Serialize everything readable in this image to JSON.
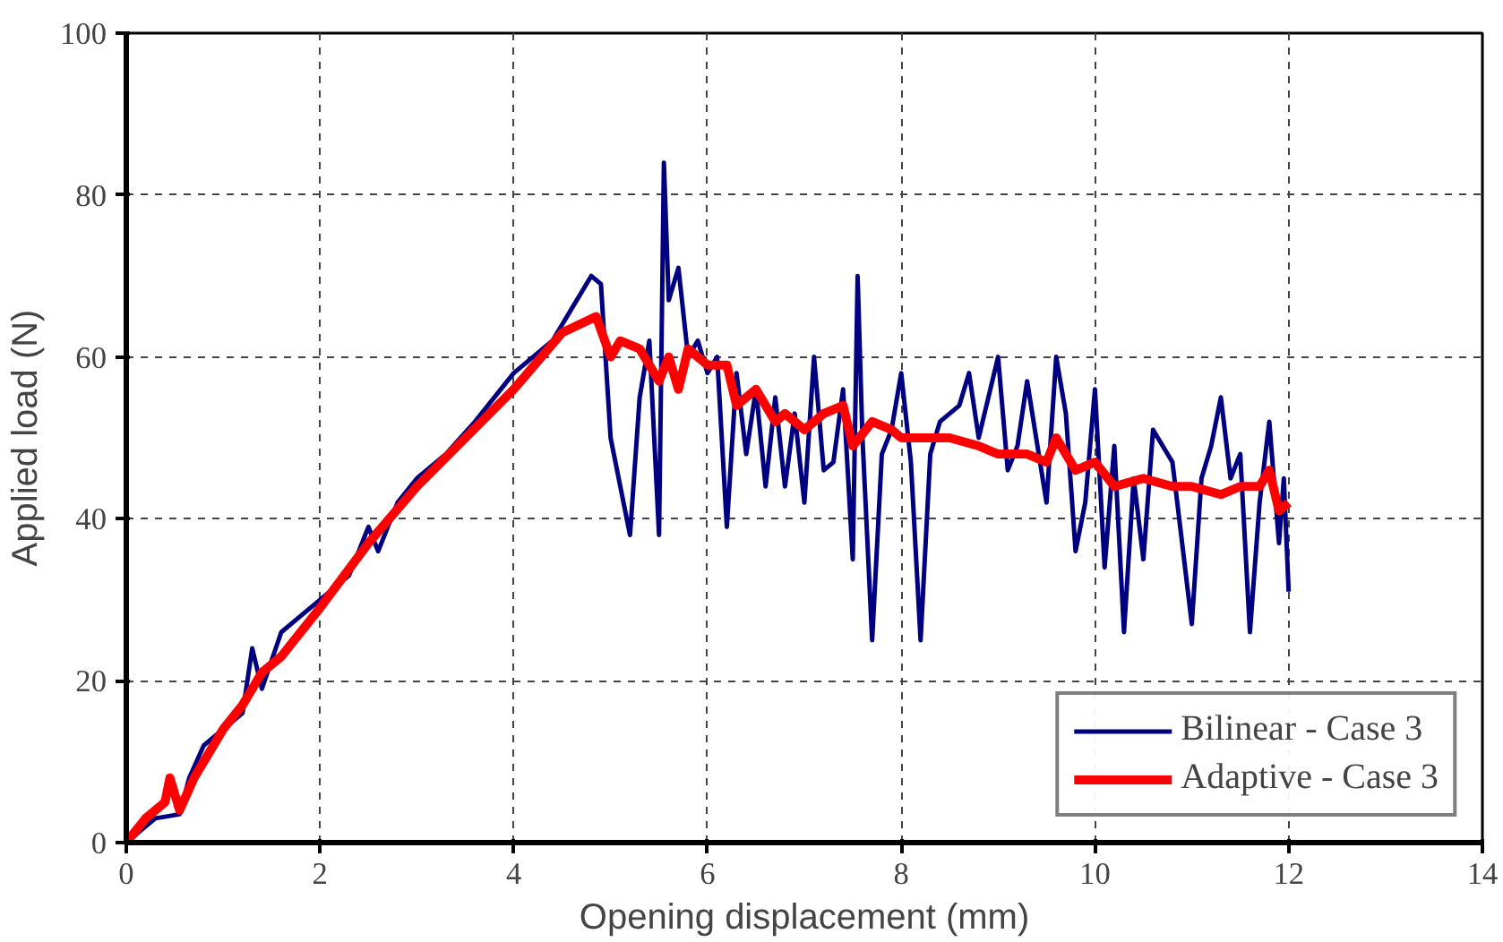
{
  "chart_data": {
    "type": "line",
    "xlabel": "Opening displacement (mm)",
    "ylabel": "Applied load (N)",
    "xlim": [
      0,
      14
    ],
    "ylim": [
      0,
      100
    ],
    "xticks": [
      0,
      2,
      4,
      6,
      8,
      10,
      12,
      14
    ],
    "yticks": [
      0,
      20,
      40,
      60,
      80,
      100
    ],
    "grid": true,
    "legend": "bottom right",
    "marker": "none",
    "line_style": "solid",
    "series": [
      {
        "name": "Bilinear - Case 3",
        "color": "#000080",
        "x": [
          0,
          0.3,
          0.55,
          0.65,
          0.8,
          1.0,
          1.2,
          1.3,
          1.4,
          1.6,
          1.8,
          2.0,
          2.3,
          2.5,
          2.6,
          2.8,
          3.0,
          3.3,
          3.6,
          4.0,
          4.4,
          4.6,
          4.8,
          4.9,
          5.0,
          5.1,
          5.2,
          5.3,
          5.4,
          5.5,
          5.55,
          5.6,
          5.7,
          5.8,
          5.9,
          6.0,
          6.1,
          6.2,
          6.3,
          6.4,
          6.5,
          6.6,
          6.7,
          6.8,
          6.9,
          7.0,
          7.1,
          7.2,
          7.3,
          7.4,
          7.5,
          7.55,
          7.6,
          7.7,
          7.8,
          7.9,
          8.0,
          8.1,
          8.2,
          8.3,
          8.4,
          8.6,
          8.7,
          8.8,
          9.0,
          9.1,
          9.2,
          9.3,
          9.5,
          9.6,
          9.7,
          9.8,
          9.9,
          10.0,
          10.1,
          10.2,
          10.3,
          10.4,
          10.5,
          10.6,
          10.8,
          11.0,
          11.1,
          11.2,
          11.3,
          11.4,
          11.5,
          11.6,
          11.7,
          11.8,
          11.9,
          11.95,
          12.0
        ],
        "values": [
          0,
          3,
          3.5,
          8,
          12,
          14,
          16,
          24,
          19,
          26,
          28,
          30,
          33,
          39,
          36,
          42,
          45,
          48,
          52,
          58,
          62,
          66,
          70,
          69,
          50,
          44,
          38,
          55,
          62,
          38,
          84,
          67,
          71,
          60,
          62,
          58,
          60,
          39,
          58,
          48,
          56,
          44,
          55,
          44,
          53,
          42,
          60,
          46,
          47,
          56,
          35,
          70,
          50,
          25,
          48,
          51,
          58,
          47,
          25,
          48,
          52,
          54,
          58,
          50,
          60,
          46,
          49,
          57,
          42,
          60,
          53,
          36,
          42,
          56,
          34,
          49,
          26,
          45,
          35,
          51,
          47,
          27,
          45,
          49,
          55,
          45,
          48,
          26,
          42,
          52,
          37,
          45,
          31
        ]
      },
      {
        "name": "Adaptive - Case 3",
        "color": "#ff0000",
        "x": [
          0,
          0.2,
          0.4,
          0.45,
          0.55,
          0.7,
          1.0,
          1.2,
          1.4,
          1.6,
          2.0,
          2.5,
          3.0,
          3.5,
          4.0,
          4.5,
          4.85,
          5.0,
          5.1,
          5.3,
          5.5,
          5.6,
          5.7,
          5.8,
          6.0,
          6.2,
          6.3,
          6.5,
          6.7,
          6.8,
          7.0,
          7.2,
          7.4,
          7.5,
          7.7,
          7.9,
          8.0,
          8.2,
          8.5,
          8.8,
          9.0,
          9.3,
          9.5,
          9.6,
          9.8,
          10.0,
          10.2,
          10.5,
          10.8,
          11.0,
          11.3,
          11.5,
          11.7,
          11.8,
          11.9,
          12.0
        ],
        "values": [
          0,
          3,
          5,
          8,
          4,
          8,
          14,
          17,
          21,
          23,
          29,
          37,
          44,
          50,
          56,
          63,
          65,
          60,
          62,
          61,
          57,
          60,
          56,
          61,
          59,
          59,
          54,
          56,
          52,
          53,
          51,
          53,
          54,
          49,
          52,
          51,
          50,
          50,
          50,
          49,
          48,
          48,
          47,
          50,
          46,
          47,
          44,
          45,
          44,
          44,
          43,
          44,
          44,
          46,
          41,
          42
        ]
      }
    ]
  }
}
